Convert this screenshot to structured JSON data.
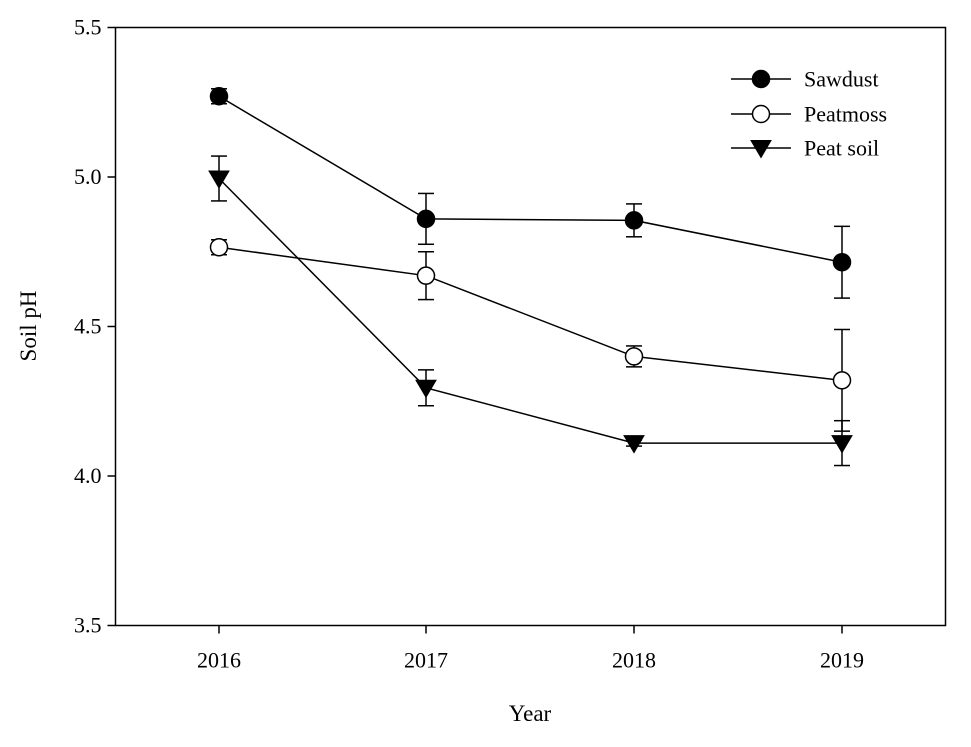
{
  "chart_data": {
    "type": "line",
    "title": "",
    "xlabel": "Year",
    "ylabel": "Soil pH",
    "categories": [
      "2016",
      "2017",
      "2018",
      "2019"
    ],
    "ylim": [
      3.5,
      5.5
    ],
    "yticks": [
      "3.5",
      "4.0",
      "4.5",
      "5.0",
      "5.5"
    ],
    "grid": false,
    "legend_position": "top-right",
    "series": [
      {
        "name": "Sawdust",
        "marker": "filled-circle",
        "color": "#000000",
        "values": [
          5.27,
          4.86,
          4.855,
          4.715
        ],
        "errors": [
          0.025,
          0.085,
          0.055,
          0.12
        ]
      },
      {
        "name": "Peatmoss",
        "marker": "open-circle",
        "color": "#000000",
        "values": [
          4.765,
          4.67,
          4.4,
          4.32
        ],
        "errors": [
          0.025,
          0.08,
          0.035,
          0.17
        ]
      },
      {
        "name": "Peat soil",
        "marker": "filled-triangle-down",
        "color": "#000000",
        "values": [
          4.995,
          4.295,
          4.11,
          4.11
        ],
        "errors": [
          0.075,
          0.06,
          0.01,
          0.075
        ]
      }
    ]
  }
}
